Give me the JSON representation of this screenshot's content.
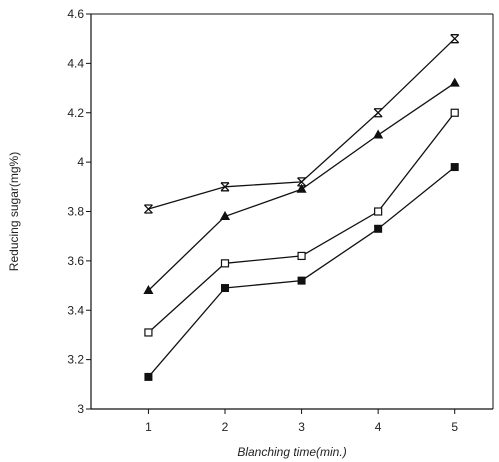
{
  "chart_data": {
    "type": "line",
    "title": "",
    "xlabel": "Blanching time(min.)",
    "ylabel": "Reducing sugar(mg%)",
    "x": [
      1,
      2,
      3,
      4,
      5
    ],
    "x_tick_labels": [
      "1",
      "2",
      "3",
      "4",
      "5"
    ],
    "xlim": [
      0.25,
      5.5
    ],
    "ylim": [
      3.0,
      4.6
    ],
    "y_ticks": [
      3.0,
      3.2,
      3.4,
      3.6,
      3.8,
      4.0,
      4.2,
      4.4,
      4.6
    ],
    "y_tick_labels": [
      "3",
      "3.2",
      "3.4",
      "3.6",
      "3.8",
      "4",
      "4.2",
      "4.4",
      "4.6"
    ],
    "grid": false,
    "legend": "none",
    "series": [
      {
        "marker": "x-bar",
        "color": "#111111",
        "values": [
          3.81,
          3.9,
          3.92,
          4.2,
          4.5
        ]
      },
      {
        "marker": "triangle",
        "color": "#111111",
        "values": [
          3.48,
          3.78,
          3.89,
          4.11,
          4.32
        ]
      },
      {
        "marker": "open-square",
        "color": "#111111",
        "values": [
          3.31,
          3.59,
          3.62,
          3.8,
          4.2
        ]
      },
      {
        "marker": "filled-square",
        "color": "#111111",
        "values": [
          3.13,
          3.49,
          3.52,
          3.73,
          3.98
        ]
      }
    ]
  }
}
